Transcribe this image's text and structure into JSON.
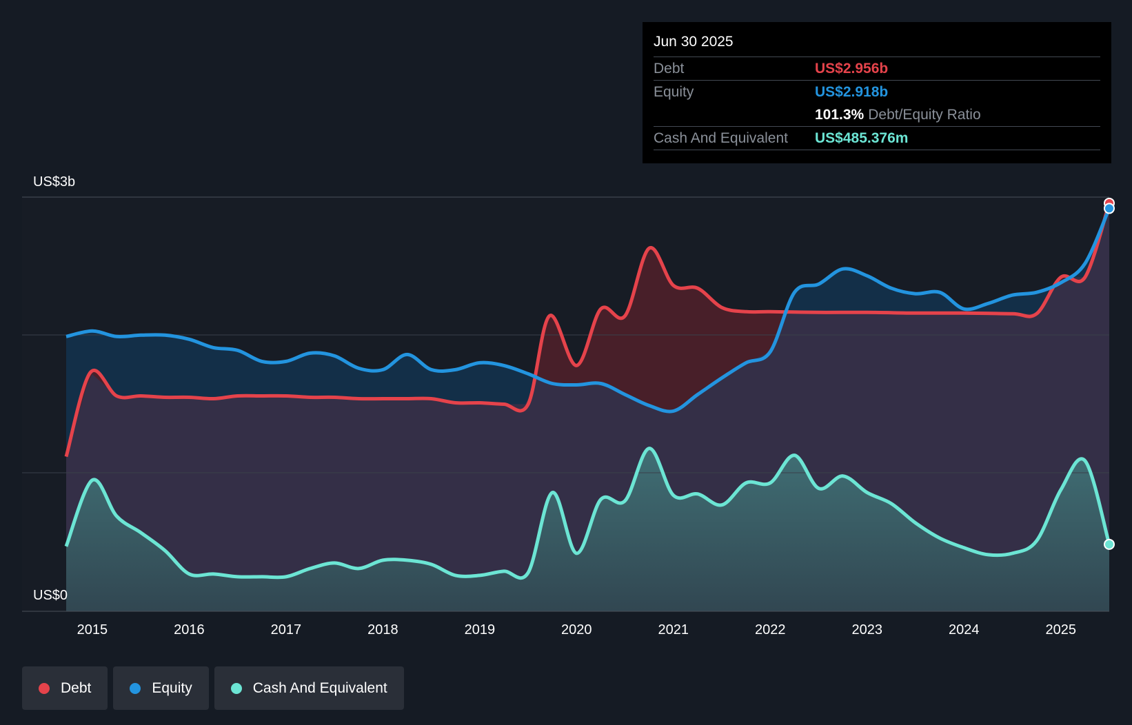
{
  "tooltip": {
    "date": "Jun 30 2025",
    "debt_label": "Debt",
    "debt_value": "US$2.956b",
    "equity_label": "Equity",
    "equity_value": "US$2.918b",
    "ratio_value": "101.3%",
    "ratio_label": "Debt/Equity Ratio",
    "cash_label": "Cash And Equivalent",
    "cash_value": "US$485.376m"
  },
  "legend": {
    "debt": "Debt",
    "equity": "Equity",
    "cash": "Cash And Equivalent"
  },
  "colors": {
    "debt": "#e5434b",
    "equity": "#2394df",
    "cash": "#6ce5d4",
    "background": "#151b24",
    "grid": "#3a404a"
  },
  "chart_data": {
    "type": "area",
    "title": "",
    "ylabel_top": "US$3b",
    "ylabel_bottom": "US$0",
    "ylim": [
      0,
      3.0
    ],
    "xlim": [
      2014.73,
      2025.5
    ],
    "x_ticks": [
      2015,
      2016,
      2017,
      2018,
      2019,
      2020,
      2021,
      2022,
      2023,
      2024,
      2025
    ],
    "series": [
      {
        "name": "Debt",
        "points": [
          [
            2014.73,
            1.12
          ],
          [
            2014.98,
            1.73
          ],
          [
            2015.25,
            1.56
          ],
          [
            2015.5,
            1.56
          ],
          [
            2015.75,
            1.55
          ],
          [
            2016.0,
            1.55
          ],
          [
            2016.25,
            1.54
          ],
          [
            2016.5,
            1.56
          ],
          [
            2016.75,
            1.56
          ],
          [
            2017.0,
            1.56
          ],
          [
            2017.25,
            1.55
          ],
          [
            2017.5,
            1.55
          ],
          [
            2017.75,
            1.54
          ],
          [
            2018.0,
            1.54
          ],
          [
            2018.25,
            1.54
          ],
          [
            2018.5,
            1.54
          ],
          [
            2018.75,
            1.51
          ],
          [
            2019.0,
            1.51
          ],
          [
            2019.25,
            1.5
          ],
          [
            2019.5,
            1.5
          ],
          [
            2019.72,
            2.14
          ],
          [
            2020.0,
            1.78
          ],
          [
            2020.25,
            2.19
          ],
          [
            2020.5,
            2.14
          ],
          [
            2020.75,
            2.63
          ],
          [
            2021.0,
            2.36
          ],
          [
            2021.25,
            2.34
          ],
          [
            2021.5,
            2.2
          ],
          [
            2021.75,
            2.17
          ],
          [
            2022.0,
            2.17
          ],
          [
            2022.5,
            2.165
          ],
          [
            2023.0,
            2.165
          ],
          [
            2023.5,
            2.16
          ],
          [
            2024.0,
            2.16
          ],
          [
            2024.5,
            2.155
          ],
          [
            2024.75,
            2.155
          ],
          [
            2025.0,
            2.42
          ],
          [
            2025.25,
            2.42
          ],
          [
            2025.5,
            2.956
          ]
        ]
      },
      {
        "name": "Equity",
        "points": [
          [
            2014.73,
            1.99
          ],
          [
            2015.0,
            2.03
          ],
          [
            2015.25,
            1.99
          ],
          [
            2015.5,
            2.0
          ],
          [
            2015.75,
            2.0
          ],
          [
            2016.0,
            1.97
          ],
          [
            2016.25,
            1.91
          ],
          [
            2016.5,
            1.89
          ],
          [
            2016.75,
            1.81
          ],
          [
            2017.0,
            1.81
          ],
          [
            2017.25,
            1.87
          ],
          [
            2017.5,
            1.85
          ],
          [
            2017.75,
            1.76
          ],
          [
            2018.0,
            1.75
          ],
          [
            2018.25,
            1.86
          ],
          [
            2018.5,
            1.75
          ],
          [
            2018.75,
            1.75
          ],
          [
            2019.0,
            1.8
          ],
          [
            2019.25,
            1.78
          ],
          [
            2019.5,
            1.72
          ],
          [
            2019.75,
            1.65
          ],
          [
            2020.0,
            1.64
          ],
          [
            2020.25,
            1.65
          ],
          [
            2020.5,
            1.57
          ],
          [
            2020.75,
            1.49
          ],
          [
            2021.0,
            1.45
          ],
          [
            2021.25,
            1.57
          ],
          [
            2021.5,
            1.69
          ],
          [
            2021.75,
            1.8
          ],
          [
            2022.0,
            1.88
          ],
          [
            2022.25,
            2.31
          ],
          [
            2022.5,
            2.37
          ],
          [
            2022.75,
            2.48
          ],
          [
            2023.0,
            2.43
          ],
          [
            2023.25,
            2.34
          ],
          [
            2023.5,
            2.3
          ],
          [
            2023.75,
            2.31
          ],
          [
            2024.0,
            2.19
          ],
          [
            2024.25,
            2.23
          ],
          [
            2024.5,
            2.29
          ],
          [
            2024.75,
            2.31
          ],
          [
            2025.0,
            2.38
          ],
          [
            2025.25,
            2.52
          ],
          [
            2025.5,
            2.918
          ]
        ]
      },
      {
        "name": "Cash And Equivalent",
        "points": [
          [
            2014.73,
            0.47
          ],
          [
            2015.0,
            0.95
          ],
          [
            2015.25,
            0.69
          ],
          [
            2015.5,
            0.57
          ],
          [
            2015.75,
            0.44
          ],
          [
            2016.0,
            0.27
          ],
          [
            2016.25,
            0.27
          ],
          [
            2016.5,
            0.25
          ],
          [
            2016.75,
            0.25
          ],
          [
            2017.0,
            0.25
          ],
          [
            2017.25,
            0.31
          ],
          [
            2017.5,
            0.35
          ],
          [
            2017.75,
            0.31
          ],
          [
            2018.0,
            0.37
          ],
          [
            2018.25,
            0.37
          ],
          [
            2018.5,
            0.34
          ],
          [
            2018.75,
            0.26
          ],
          [
            2019.0,
            0.26
          ],
          [
            2019.25,
            0.29
          ],
          [
            2019.5,
            0.28
          ],
          [
            2019.75,
            0.86
          ],
          [
            2020.0,
            0.42
          ],
          [
            2020.25,
            0.81
          ],
          [
            2020.5,
            0.8
          ],
          [
            2020.75,
            1.18
          ],
          [
            2021.0,
            0.84
          ],
          [
            2021.25,
            0.85
          ],
          [
            2021.5,
            0.77
          ],
          [
            2021.75,
            0.93
          ],
          [
            2022.0,
            0.93
          ],
          [
            2022.25,
            1.13
          ],
          [
            2022.5,
            0.89
          ],
          [
            2022.75,
            0.98
          ],
          [
            2023.0,
            0.86
          ],
          [
            2023.25,
            0.78
          ],
          [
            2023.5,
            0.64
          ],
          [
            2023.75,
            0.53
          ],
          [
            2024.0,
            0.46
          ],
          [
            2024.25,
            0.41
          ],
          [
            2024.5,
            0.42
          ],
          [
            2024.75,
            0.51
          ],
          [
            2025.0,
            0.88
          ],
          [
            2025.25,
            1.09
          ],
          [
            2025.5,
            0.485
          ]
        ]
      }
    ]
  }
}
